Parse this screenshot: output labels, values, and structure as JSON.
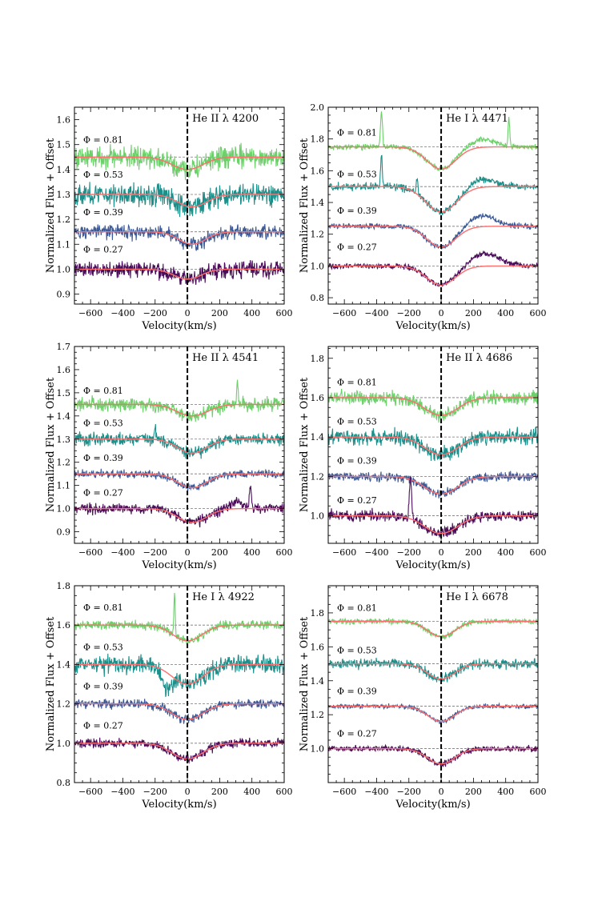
{
  "figure": {
    "xlabel": "Velocity(km/s)",
    "ylabel": "Normalized Flux + Offset",
    "x_ticks": [
      -600,
      -400,
      -200,
      0,
      200,
      400,
      600
    ],
    "xlim": [
      -700,
      600
    ],
    "colors": {
      "phase_0_81": "#6cd06a",
      "phase_0_53": "#1d8f8a",
      "phase_0_39": "#3c5a97",
      "phase_0_27": "#4a0d59",
      "model": "#ff6e6e",
      "zero_line": "#000000",
      "reference": "#777777"
    },
    "phase_labels": [
      "Φ = 0.81",
      "Φ = 0.53",
      "Φ = 0.39",
      "Φ = 0.27"
    ],
    "offsets": [
      1.45,
      1.3,
      1.15,
      1.0
    ]
  },
  "chart_data": [
    {
      "type": "line",
      "title": "He II λ 4200",
      "ylim": [
        0.86,
        1.65
      ],
      "y_ticks": [
        "0.9",
        "1.0",
        "1.1",
        "1.2",
        "1.3",
        "1.4",
        "1.5",
        "1.6"
      ],
      "offsets": [
        1.45,
        1.3,
        1.15,
        1.0
      ],
      "phase_label_y": [
        1.52,
        1.38,
        1.23,
        1.08
      ],
      "series": [
        {
          "name": "Φ = 0.81",
          "baseline": 1.45,
          "noise": 0.04,
          "model_center": 0,
          "model_depth": 0.05,
          "model_width": 160,
          "obs_features": []
        },
        {
          "name": "Φ = 0.53",
          "baseline": 1.3,
          "noise": 0.04,
          "model_center": 30,
          "model_depth": 0.05,
          "model_width": 150,
          "obs_features": []
        },
        {
          "name": "Φ = 0.39",
          "baseline": 1.15,
          "noise": 0.025,
          "model_center": 30,
          "model_depth": 0.05,
          "model_width": 140,
          "obs_features": []
        },
        {
          "name": "Φ = 0.27",
          "baseline": 1.0,
          "noise": 0.03,
          "model_center": 0,
          "model_depth": 0.04,
          "model_width": 140,
          "obs_features": []
        }
      ]
    },
    {
      "type": "line",
      "title": "He I λ 4471",
      "ylim": [
        0.76,
        2.0
      ],
      "y_ticks": [
        "0.8",
        "1.0",
        "1.2",
        "1.4",
        "1.6",
        "1.8",
        "2.0"
      ],
      "offsets": [
        1.75,
        1.5,
        1.25,
        1.0
      ],
      "phase_label_y": [
        1.84,
        1.58,
        1.35,
        1.12
      ],
      "series": [
        {
          "name": "Φ = 0.81",
          "baseline": 1.75,
          "noise": 0.015,
          "model_center": 0,
          "model_depth": 0.14,
          "model_width": 150,
          "obs_features": [
            {
              "c": 250,
              "a": 0.05,
              "w": 80
            },
            {
              "c": -370,
              "a": 0.22,
              "w": 6
            },
            {
              "c": 420,
              "a": 0.18,
              "w": 5
            }
          ]
        },
        {
          "name": "Φ = 0.53",
          "baseline": 1.5,
          "noise": 0.02,
          "model_center": 0,
          "model_depth": 0.16,
          "model_width": 160,
          "obs_features": [
            {
              "c": 250,
              "a": 0.05,
              "w": 80
            },
            {
              "c": -370,
              "a": 0.2,
              "w": 5
            },
            {
              "c": -150,
              "a": 0.1,
              "w": 5
            }
          ]
        },
        {
          "name": "Φ = 0.39",
          "baseline": 1.25,
          "noise": 0.015,
          "model_center": 0,
          "model_depth": 0.13,
          "model_width": 150,
          "obs_features": [
            {
              "c": 250,
              "a": 0.07,
              "w": 80
            }
          ]
        },
        {
          "name": "Φ = 0.27",
          "baseline": 1.0,
          "noise": 0.015,
          "model_center": 0,
          "model_depth": 0.12,
          "model_width": 150,
          "obs_features": [
            {
              "c": 270,
              "a": 0.08,
              "w": 90
            }
          ]
        }
      ]
    },
    {
      "type": "line",
      "title": "He II λ 4541",
      "ylim": [
        0.85,
        1.7
      ],
      "y_ticks": [
        "0.9",
        "1.0",
        "1.1",
        "1.2",
        "1.3",
        "1.4",
        "1.5",
        "1.6",
        "1.7"
      ],
      "offsets": [
        1.45,
        1.3,
        1.15,
        1.0
      ],
      "phase_label_y": [
        1.51,
        1.37,
        1.22,
        1.07
      ],
      "series": [
        {
          "name": "Φ = 0.81",
          "baseline": 1.45,
          "noise": 0.025,
          "model_center": 30,
          "model_depth": 0.05,
          "model_width": 160,
          "obs_features": [
            {
              "c": 310,
              "a": 0.1,
              "w": 5
            }
          ]
        },
        {
          "name": "Φ = 0.53",
          "baseline": 1.3,
          "noise": 0.025,
          "model_center": 30,
          "model_depth": 0.06,
          "model_width": 150,
          "obs_features": [
            {
              "c": -200,
              "a": 0.05,
              "w": 6
            }
          ]
        },
        {
          "name": "Φ = 0.39",
          "baseline": 1.15,
          "noise": 0.015,
          "model_center": 30,
          "model_depth": 0.06,
          "model_width": 150,
          "obs_features": []
        },
        {
          "name": "Φ = 0.27",
          "baseline": 1.0,
          "noise": 0.02,
          "model_center": 30,
          "model_depth": 0.06,
          "model_width": 150,
          "obs_features": [
            {
              "c": 390,
              "a": 0.1,
              "w": 6
            },
            {
              "c": 300,
              "a": 0.03,
              "w": 40
            }
          ]
        }
      ]
    },
    {
      "type": "line",
      "title": "He II λ 4686",
      "ylim": [
        0.86,
        1.86
      ],
      "y_ticks": [
        "1.0",
        "1.2",
        "1.4",
        "1.6",
        "1.8"
      ],
      "offsets": [
        1.6,
        1.4,
        1.2,
        1.0
      ],
      "phase_label_y": [
        1.68,
        1.48,
        1.28,
        1.08
      ],
      "series": [
        {
          "name": "Φ = 0.81",
          "baseline": 1.6,
          "noise": 0.03,
          "model_center": 0,
          "model_depth": 0.09,
          "model_width": 170,
          "obs_features": []
        },
        {
          "name": "Φ = 0.53",
          "baseline": 1.4,
          "noise": 0.035,
          "model_center": 0,
          "model_depth": 0.09,
          "model_width": 170,
          "obs_features": []
        },
        {
          "name": "Φ = 0.39",
          "baseline": 1.2,
          "noise": 0.02,
          "model_center": 0,
          "model_depth": 0.09,
          "model_width": 170,
          "obs_features": []
        },
        {
          "name": "Φ = 0.27",
          "baseline": 1.0,
          "noise": 0.025,
          "model_center": 0,
          "model_depth": 0.09,
          "model_width": 170,
          "obs_features": [
            {
              "c": -190,
              "a": 0.2,
              "w": 7
            }
          ]
        }
      ]
    },
    {
      "type": "line",
      "title": "He I λ 4922",
      "ylim": [
        0.8,
        1.8
      ],
      "y_ticks": [
        "0.8",
        "1.0",
        "1.2",
        "1.4",
        "1.6",
        "1.8"
      ],
      "offsets": [
        1.6,
        1.4,
        1.2,
        1.0
      ],
      "phase_label_y": [
        1.69,
        1.49,
        1.29,
        1.09
      ],
      "series": [
        {
          "name": "Φ = 0.81",
          "baseline": 1.6,
          "noise": 0.02,
          "model_center": 0,
          "model_depth": 0.08,
          "model_width": 150,
          "obs_features": [
            {
              "c": -80,
              "a": 0.22,
              "w": 4
            }
          ]
        },
        {
          "name": "Φ = 0.53",
          "baseline": 1.4,
          "noise": 0.04,
          "model_center": 0,
          "model_depth": 0.1,
          "model_width": 160,
          "obs_features": [
            {
              "c": -130,
              "a": -0.08,
              "w": 30
            }
          ]
        },
        {
          "name": "Φ = 0.39",
          "baseline": 1.2,
          "noise": 0.02,
          "model_center": 0,
          "model_depth": 0.08,
          "model_width": 160,
          "obs_features": []
        },
        {
          "name": "Φ = 0.27",
          "baseline": 1.0,
          "noise": 0.02,
          "model_center": 0,
          "model_depth": 0.08,
          "model_width": 160,
          "obs_features": []
        }
      ]
    },
    {
      "type": "line",
      "title": "He I λ 6678",
      "ylim": [
        0.8,
        1.96
      ],
      "y_ticks": [
        "1.0",
        "1.2",
        "1.4",
        "1.6",
        "1.8"
      ],
      "offsets": [
        1.75,
        1.5,
        1.25,
        1.0
      ],
      "phase_label_y": [
        1.83,
        1.58,
        1.34,
        1.09
      ],
      "series": [
        {
          "name": "Φ = 0.81",
          "baseline": 1.75,
          "noise": 0.015,
          "model_center": 0,
          "model_depth": 0.09,
          "model_width": 140,
          "obs_features": []
        },
        {
          "name": "Φ = 0.53",
          "baseline": 1.5,
          "noise": 0.025,
          "model_center": 0,
          "model_depth": 0.09,
          "model_width": 140,
          "obs_features": []
        },
        {
          "name": "Φ = 0.39",
          "baseline": 1.25,
          "noise": 0.012,
          "model_center": 0,
          "model_depth": 0.09,
          "model_width": 140,
          "obs_features": []
        },
        {
          "name": "Φ = 0.27",
          "baseline": 1.0,
          "noise": 0.015,
          "model_center": 0,
          "model_depth": 0.09,
          "model_width": 140,
          "obs_features": []
        }
      ]
    }
  ]
}
